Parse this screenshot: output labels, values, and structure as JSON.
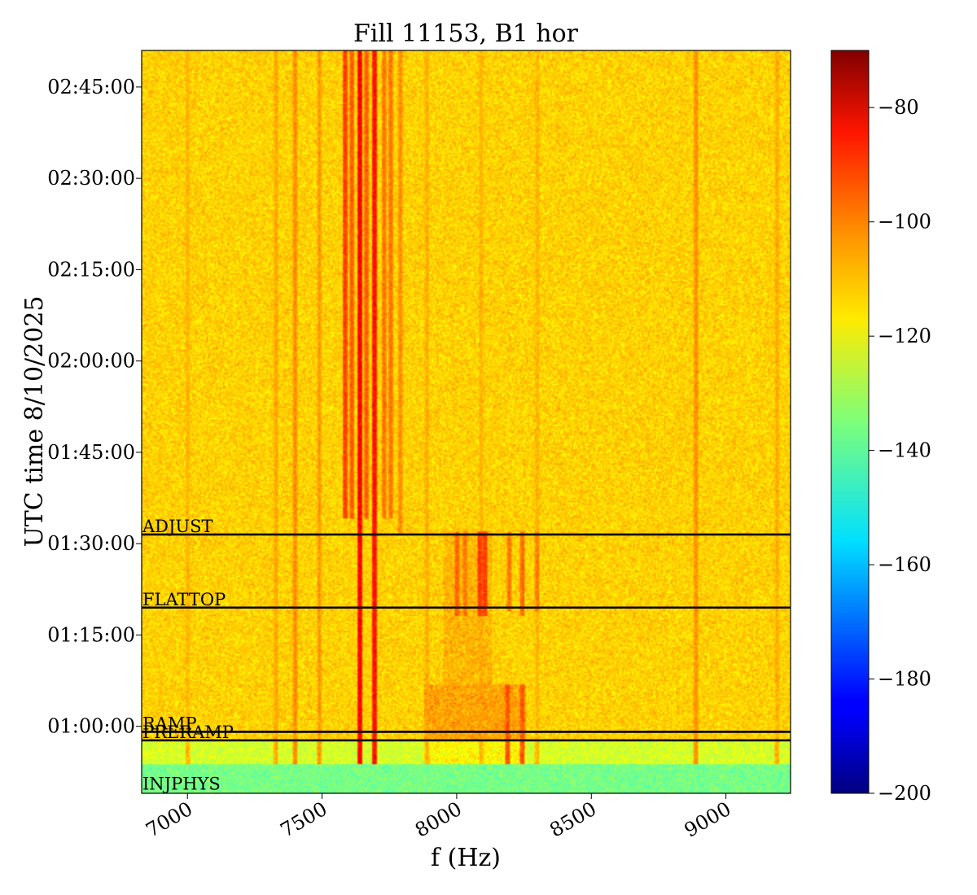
{
  "chart_data": {
    "type": "heatmap",
    "title": "Fill 11153, B1 hor",
    "xlabel": "f (Hz)",
    "ylabel": "UTC time 8/10/2025",
    "xlim": [
      6830,
      9240
    ],
    "ylim_minutes_utc": [
      49,
      171
    ],
    "x_ticks": [
      7000,
      7500,
      8000,
      8500,
      9000
    ],
    "y_ticks": [
      {
        "label": "01:00:00",
        "minutes": 60
      },
      {
        "label": "01:15:00",
        "minutes": 75
      },
      {
        "label": "01:30:00",
        "minutes": 90
      },
      {
        "label": "01:45:00",
        "minutes": 105
      },
      {
        "label": "02:00:00",
        "minutes": 120
      },
      {
        "label": "02:15:00",
        "minutes": 135
      },
      {
        "label": "02:30:00",
        "minutes": 150
      },
      {
        "label": "02:45:00",
        "minutes": 165
      }
    ],
    "colormap": "jet",
    "colorbar": {
      "vmin": -200,
      "vmax": -70,
      "ticks": [
        -80,
        -100,
        -120,
        -140,
        -160,
        -180,
        -200
      ],
      "tick_labels": [
        "−80",
        "−100",
        "−120",
        "−140",
        "−160",
        "−180",
        "−200"
      ]
    },
    "background_level": -113,
    "beam_modes": [
      {
        "label": "ADJUST",
        "minutes": 91.5
      },
      {
        "label": "FLATTOP",
        "minutes": 79.5
      },
      {
        "label": "RAMP",
        "minutes": 59.1
      },
      {
        "label": "PRERAMP",
        "minutes": 57.7
      },
      {
        "label": "INJPHYS",
        "minutes": 49.2
      }
    ],
    "spectral_lines": [
      {
        "f": 7640,
        "t_start": 53.7,
        "t_end": 171,
        "level": -85
      },
      {
        "f": 7695,
        "t_start": 53.7,
        "t_end": 171,
        "level": -87
      },
      {
        "f": 7585,
        "t_start": 94,
        "t_end": 171,
        "level": -93
      },
      {
        "f": 7610,
        "t_start": 94,
        "t_end": 171,
        "level": -97
      },
      {
        "f": 7665,
        "t_start": 94,
        "t_end": 171,
        "level": -97
      },
      {
        "f": 7730,
        "t_start": 94,
        "t_end": 171,
        "level": -100
      },
      {
        "f": 7755,
        "t_start": 94,
        "t_end": 171,
        "level": -100
      },
      {
        "f": 7790,
        "t_start": 91.5,
        "t_end": 171,
        "level": -103
      },
      {
        "f": 7400,
        "t_start": 53.7,
        "t_end": 171,
        "level": -103
      },
      {
        "f": 7490,
        "t_start": 53.7,
        "t_end": 171,
        "level": -105
      },
      {
        "f": 7330,
        "t_start": 53.7,
        "t_end": 171,
        "level": -106
      },
      {
        "f": 7000,
        "t_start": 53.7,
        "t_end": 171,
        "level": -108
      },
      {
        "f": 7890,
        "t_start": 53.7,
        "t_end": 171,
        "level": -107
      },
      {
        "f": 8090,
        "t_start": 53.7,
        "t_end": 171,
        "level": -108
      },
      {
        "f": 8300,
        "t_start": 53.7,
        "t_end": 171,
        "level": -108
      },
      {
        "f": 8890,
        "t_start": 53.7,
        "t_end": 171,
        "level": -103
      },
      {
        "f": 9190,
        "t_start": 53.7,
        "t_end": 171,
        "level": -107
      },
      {
        "f": 8000,
        "t_start": 78,
        "t_end": 92,
        "level": -97
      },
      {
        "f": 8030,
        "t_start": 78,
        "t_end": 92,
        "level": -100
      },
      {
        "f": 8085,
        "t_start": 78,
        "t_end": 92,
        "level": -92
      },
      {
        "f": 8105,
        "t_start": 78,
        "t_end": 92,
        "level": -92
      },
      {
        "f": 8195,
        "t_start": 79,
        "t_end": 92,
        "level": -100
      },
      {
        "f": 8245,
        "t_start": 78,
        "t_end": 92,
        "level": -98
      },
      {
        "f": 8300,
        "t_start": 79,
        "t_end": 92,
        "level": -100
      },
      {
        "f": 8190,
        "t_start": 53.7,
        "t_end": 67,
        "level": -95
      },
      {
        "f": 8245,
        "t_start": 53.7,
        "t_end": 67,
        "level": -95
      }
    ]
  }
}
